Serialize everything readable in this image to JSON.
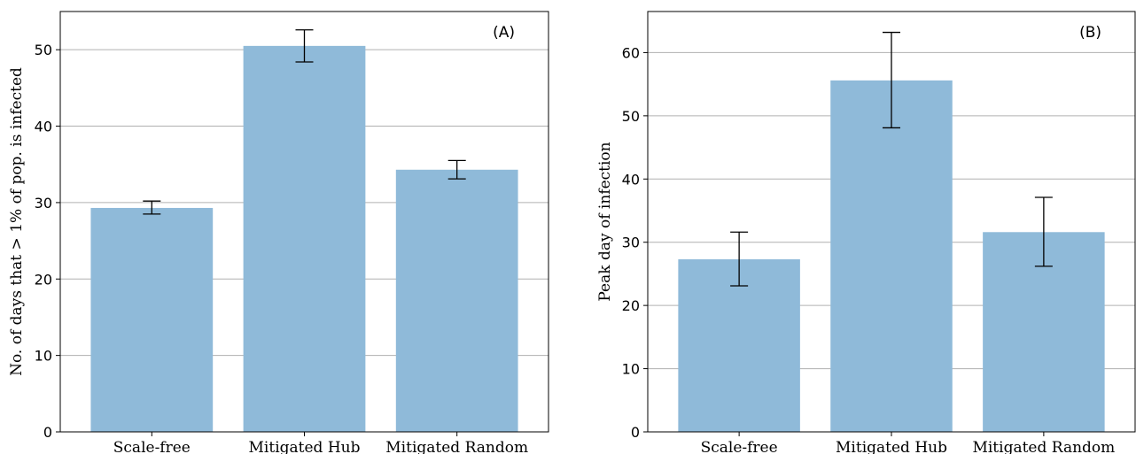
{
  "chart_data": [
    {
      "type": "bar",
      "panel_label": "(A)",
      "categories": [
        "Scale-free",
        "Mitigated Hub",
        "Mitigated Random"
      ],
      "values": [
        29.3,
        50.5,
        34.3
      ],
      "error_low": [
        28.5,
        48.4,
        33.1
      ],
      "error_high": [
        30.2,
        52.6,
        35.5
      ],
      "ylabel": "No. of days that > 1% of pop. is infected",
      "ylim": [
        0,
        55
      ],
      "yticks": [
        0,
        10,
        20,
        30,
        40,
        50
      ],
      "grid": "y",
      "bar_color": "#8fbad9"
    },
    {
      "type": "bar",
      "panel_label": "(B)",
      "categories": [
        "Scale-free",
        "Mitigated Hub",
        "Mitigated Random"
      ],
      "values": [
        27.3,
        55.6,
        31.6
      ],
      "error_low": [
        23.1,
        48.1,
        26.2
      ],
      "error_high": [
        31.6,
        63.2,
        37.1
      ],
      "ylabel": "Peak day of infection",
      "ylim": [
        0,
        66.5
      ],
      "yticks": [
        0,
        10,
        20,
        30,
        40,
        50,
        60
      ],
      "grid": "y",
      "bar_color": "#8fbad9"
    }
  ]
}
